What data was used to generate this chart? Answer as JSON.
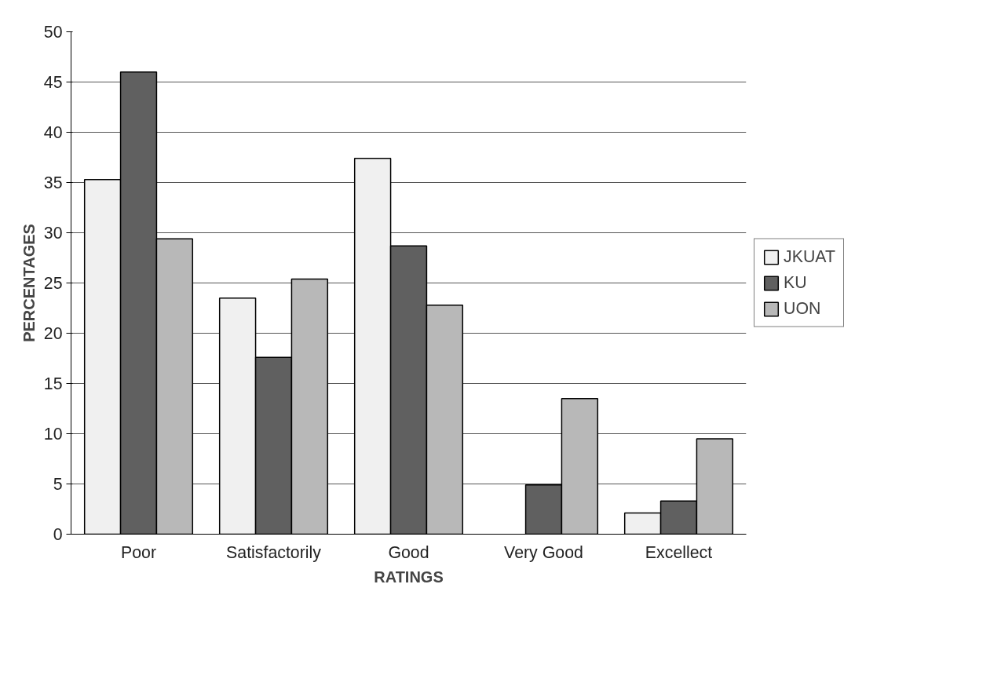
{
  "chart_data": {
    "type": "bar",
    "xlabel": "RATINGS",
    "ylabel": "PERCENTAGES",
    "categories": [
      "Poor",
      "Satisfactorily",
      "Good",
      "Very Good",
      "Excellect"
    ],
    "series": [
      {
        "name": "JKUAT",
        "color": "#f0f0f0",
        "values": [
          35.3,
          23.5,
          37.4,
          null,
          2.1
        ]
      },
      {
        "name": "KU",
        "color": "#606060",
        "values": [
          46.0,
          17.6,
          28.7,
          4.9,
          3.3
        ]
      },
      {
        "name": "UON",
        "color": "#b8b8b8",
        "values": [
          29.4,
          25.4,
          22.8,
          13.5,
          9.5
        ]
      }
    ],
    "ylim": [
      0,
      50
    ],
    "yticks": [
      0,
      5,
      10,
      15,
      20,
      25,
      30,
      35,
      40,
      45,
      50
    ],
    "grid": "y",
    "legend": "right"
  }
}
